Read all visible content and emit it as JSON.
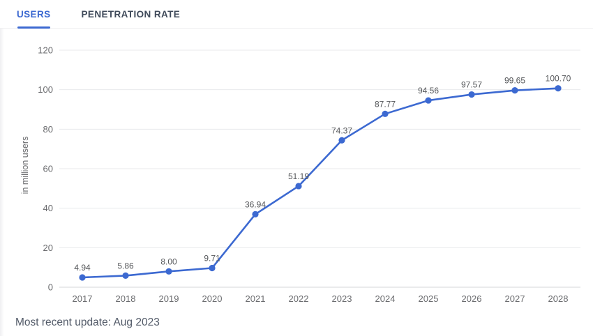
{
  "accent": {
    "blue": "#3c69d1",
    "grid": "#e8e9eb",
    "zero_line": "#d6d7d9",
    "tick_text": "#6a6b6e",
    "label_text": "#55575a",
    "inactive_tab": "#3f4a5a",
    "footer_text": "#525a68"
  },
  "tabs": [
    {
      "label": "USERS",
      "active": true
    },
    {
      "label": "PENETRATION RATE",
      "active": false
    }
  ],
  "footer": {
    "update_text": "Most recent update: Aug 2023"
  },
  "chart_data": {
    "type": "line",
    "title": "",
    "categories": [
      "2017",
      "2018",
      "2019",
      "2020",
      "2021",
      "2022",
      "2023",
      "2024",
      "2025",
      "2026",
      "2027",
      "2028"
    ],
    "values": [
      4.94,
      5.86,
      8.0,
      9.71,
      36.94,
      51.19,
      74.37,
      87.77,
      94.56,
      97.57,
      99.65,
      100.7
    ],
    "point_labels": [
      "4.94",
      "5.86",
      "8.00",
      "9.71",
      "36.94",
      "51.19",
      "74.37",
      "87.77",
      "94.56",
      "97.57",
      "99.65",
      "100.70"
    ],
    "xlabel": "",
    "ylabel": "in million users",
    "ylim": [
      0,
      120
    ],
    "yticks": [
      0,
      20,
      40,
      60,
      80,
      100,
      120
    ],
    "grid": true,
    "legend": "none",
    "line_color": "#3c69d1"
  }
}
